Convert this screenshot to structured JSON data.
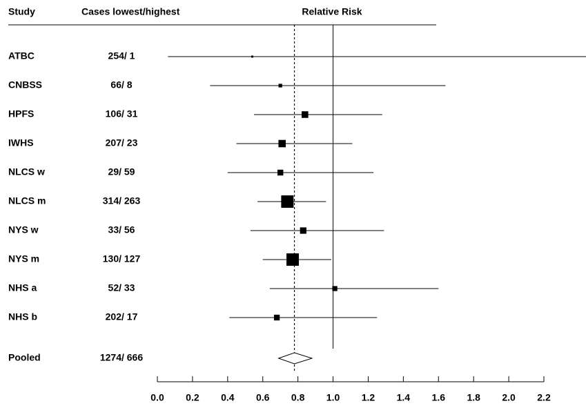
{
  "chart_data": {
    "type": "forest",
    "headers": {
      "study": "Study",
      "cases": "Cases lowest/highest",
      "effect": "Relative Risk"
    },
    "studies": [
      "ATBC",
      "CNBSS",
      "HPFS",
      "IWHS",
      "NLCS w",
      "NLCS m",
      "NYS w",
      "NYS m",
      "NHS a",
      "NHS b"
    ],
    "cases": [
      "254/  1",
      "66/  8",
      "106/  31",
      "207/  23",
      "29/  59",
      "314/ 263",
      "33/  56",
      "130/ 127",
      "52/  33",
      "202/  17"
    ],
    "values": [
      0.54,
      0.7,
      0.84,
      0.71,
      0.7,
      0.74,
      0.83,
      0.77,
      1.01,
      0.68
    ],
    "lower": [
      0.06,
      0.3,
      0.55,
      0.45,
      0.4,
      0.57,
      0.53,
      0.6,
      0.64,
      0.41
    ],
    "upper": [
      2.44,
      1.64,
      1.28,
      1.11,
      1.23,
      0.96,
      1.29,
      0.99,
      1.6,
      1.25
    ],
    "pooled": {
      "label": "Pooled",
      "cases": "1274/ 666",
      "value": 0.78,
      "lower": 0.69,
      "upper": 0.88
    },
    "reference_line": 1,
    "xlim": [
      0,
      2.2
    ],
    "xticks": [
      {
        "value": 0,
        "label": "0.0"
      },
      0.2,
      0.4,
      0.6,
      0.8,
      {
        "value": 1,
        "label": "1.0"
      },
      1.2,
      1.4,
      1.6,
      1.8,
      {
        "value": 2,
        "label": "2.0"
      },
      2.2
    ],
    "color": "#000000"
  }
}
